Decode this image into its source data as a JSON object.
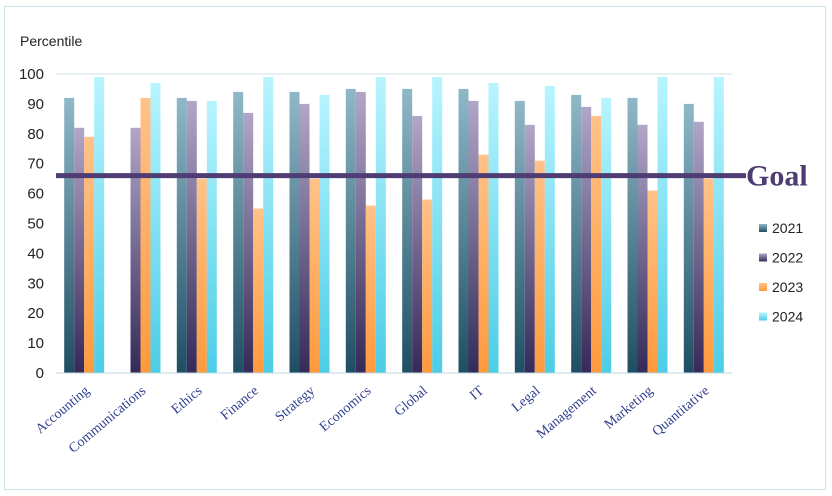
{
  "chart_data": {
    "type": "bar",
    "ylabel": "Percentile",
    "ylim": [
      0,
      100
    ],
    "yticks": [
      0,
      10,
      20,
      30,
      40,
      50,
      60,
      70,
      80,
      90,
      100
    ],
    "categories": [
      "Accounting",
      "Communications",
      "Ethics",
      "Finance",
      "Strategy",
      "Economics",
      "Global",
      "IT",
      "Legal",
      "Management",
      "Marketing",
      "Quantitative"
    ],
    "series": [
      {
        "name": "2021",
        "values": [
          92,
          0,
          92,
          94,
          94,
          95,
          95,
          95,
          91,
          93,
          92,
          90
        ],
        "color_top": "#8fb8c8",
        "color_bottom": "#1f4e63"
      },
      {
        "name": "2022",
        "values": [
          82,
          82,
          91,
          87,
          90,
          94,
          86,
          91,
          83,
          89,
          83,
          84
        ],
        "color_top": "#b1a6c8",
        "color_bottom": "#352a58"
      },
      {
        "name": "2023",
        "values": [
          79,
          92,
          65,
          55,
          65,
          56,
          58,
          73,
          71,
          86,
          61,
          65
        ],
        "color_top": "#ffc289",
        "color_bottom": "#ff9a3d"
      },
      {
        "name": "2024",
        "values": [
          99,
          97,
          91,
          99,
          93,
          99,
          99,
          97,
          96,
          92,
          99,
          99
        ],
        "color_top": "#b8f4ff",
        "color_bottom": "#4ccde6"
      }
    ],
    "goal": {
      "label": "Goal",
      "value": 66,
      "color": "#4e3c72"
    },
    "legend_position": "right",
    "grid": false
  }
}
